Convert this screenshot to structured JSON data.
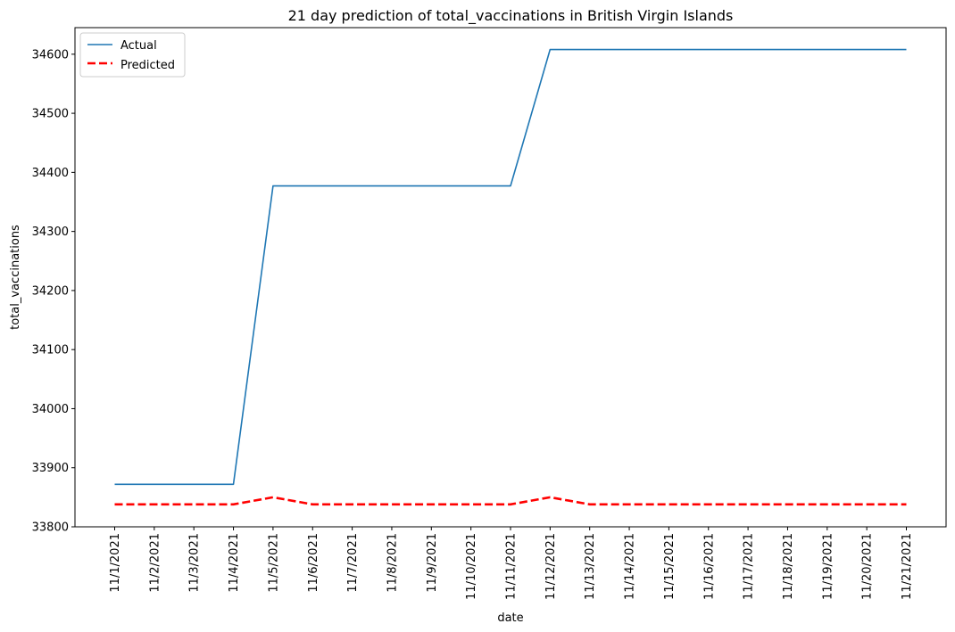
{
  "chart_data": {
    "type": "line",
    "title": "21 day prediction of total_vaccinations in British Virgin Islands",
    "xlabel": "date",
    "ylabel": "total_vaccinations",
    "x": [
      "11/1/2021",
      "11/2/2021",
      "11/3/2021",
      "11/4/2021",
      "11/5/2021",
      "11/6/2021",
      "11/7/2021",
      "11/8/2021",
      "11/9/2021",
      "11/10/2021",
      "11/11/2021",
      "11/12/2021",
      "11/13/2021",
      "11/14/2021",
      "11/15/2021",
      "11/16/2021",
      "11/17/2021",
      "11/18/2021",
      "11/19/2021",
      "11/20/2021",
      "11/21/2021"
    ],
    "yticks": [
      33800,
      33900,
      34000,
      34100,
      34200,
      34300,
      34400,
      34500,
      34600
    ],
    "ylim": [
      33800,
      34645
    ],
    "series": [
      {
        "name": "Actual",
        "color": "#1f77b4",
        "style": "solid",
        "values": [
          33872,
          33872,
          33872,
          33872,
          34377,
          34377,
          34377,
          34377,
          34377,
          34377,
          34377,
          34608,
          34608,
          34608,
          34608,
          34608,
          34608,
          34608,
          34608,
          34608,
          34608
        ]
      },
      {
        "name": "Predicted",
        "color": "#ff0000",
        "style": "dashed",
        "values": [
          33838,
          33838,
          33838,
          33838,
          33850,
          33838,
          33838,
          33838,
          33838,
          33838,
          33838,
          33850,
          33838,
          33838,
          33838,
          33838,
          33838,
          33838,
          33838,
          33838,
          33838
        ]
      }
    ],
    "legend_position": "top-left",
    "grid": false
  }
}
